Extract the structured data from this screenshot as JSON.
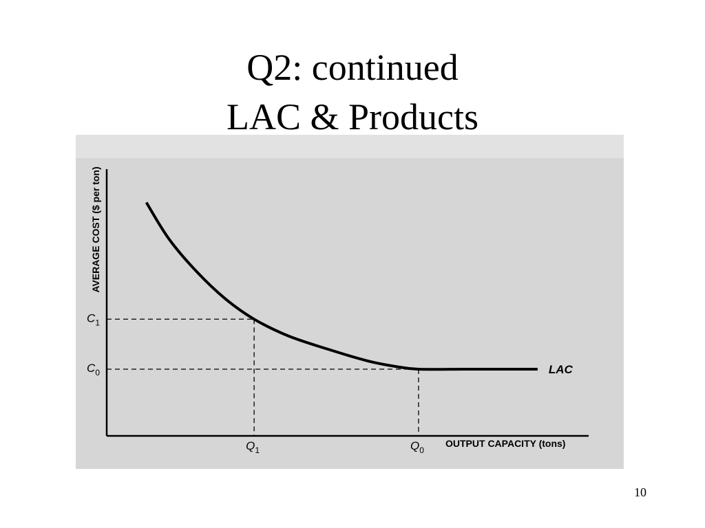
{
  "slide": {
    "title_line1": "Q2: continued",
    "title_line2": "LAC & Products",
    "page_number": "10"
  },
  "chart_data": {
    "type": "line",
    "title": "",
    "xlabel": "OUTPUT CAPACITY (tons)",
    "ylabel": "AVERAGE COST ($ per ton)",
    "x_ticks": [
      {
        "label": "Q",
        "sub": "1",
        "value": 2.6
      },
      {
        "label": "Q",
        "sub": "0",
        "value": 5.5
      }
    ],
    "y_ticks": [
      {
        "label": "C",
        "sub": "1",
        "value": 3.5
      },
      {
        "label": "C",
        "sub": "0",
        "value": 2.0
      }
    ],
    "xlim": [
      0,
      8.5
    ],
    "ylim": [
      0,
      8
    ],
    "series": [
      {
        "name": "LAC",
        "x": [
          0.7,
          1.1,
          1.6,
          2.1,
          2.6,
          3.2,
          3.9,
          4.6,
          5.1,
          5.5,
          6.3,
          7.0,
          7.6
        ],
        "y": [
          7.0,
          5.9,
          4.9,
          4.1,
          3.5,
          3.0,
          2.6,
          2.25,
          2.08,
          2.0,
          2.0,
          2.0,
          2.0
        ]
      }
    ],
    "grid": false,
    "legend": "none",
    "colors": {
      "curve": "#000000",
      "axis": "#000000",
      "panel": "#d6d6d6"
    }
  }
}
